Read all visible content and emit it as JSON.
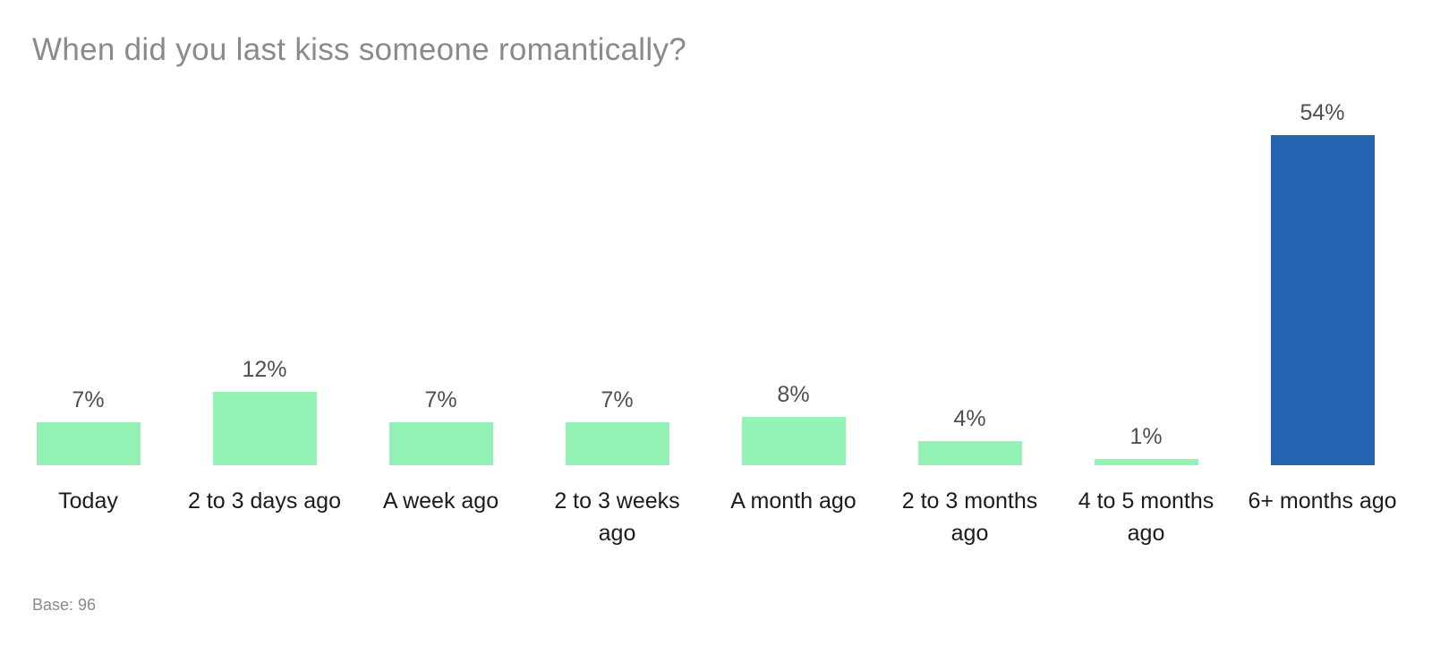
{
  "title": "When did you last kiss someone romantically?",
  "chart_data": {
    "type": "bar",
    "title": "When did you last kiss someone romantically?",
    "categories": [
      "Today",
      "2 to 3 days ago",
      "A week ago",
      "2 to 3 weeks ago",
      "A month ago",
      "2 to 3 months ago",
      "4 to 5 months ago",
      "6+ months ago"
    ],
    "values": [
      7,
      12,
      7,
      7,
      8,
      4,
      1,
      54
    ],
    "value_labels": [
      "7%",
      "12%",
      "7%",
      "7%",
      "8%",
      "4%",
      "1%",
      "54%"
    ],
    "unit": "%",
    "xlabel": "",
    "ylabel": "",
    "ylim": [
      0,
      54
    ],
    "grid": false,
    "axis_lines": false,
    "legend": null,
    "highlight_index": 7,
    "bar_colors": {
      "default": "#93f2b4",
      "highlight": "#2563b1"
    },
    "text_colors": {
      "title": "#8a8a8a",
      "value_label": "#4f4f4f",
      "category_label": "#1c1c1c",
      "base_note": "#8a8a8a"
    },
    "background": "#ffffff",
    "base_note": "Base: 96"
  }
}
